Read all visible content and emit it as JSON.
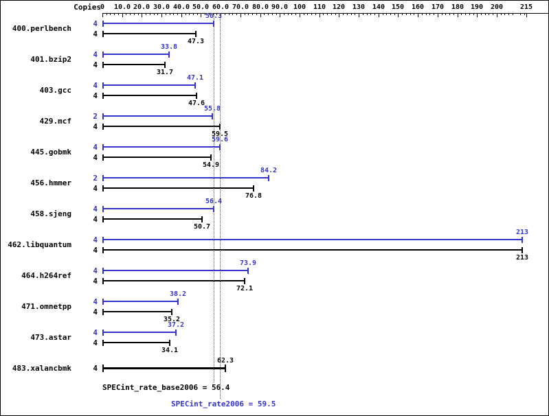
{
  "header": {
    "copies_label": "Copies"
  },
  "axis": {
    "min": 0,
    "max": 215,
    "major_tick_interval": 10,
    "minor_tick_interval": 2,
    "tick_values": [
      0,
      10,
      20,
      30,
      40,
      50,
      60,
      70,
      80,
      90,
      100,
      110,
      120,
      130,
      140,
      150,
      160,
      170,
      180,
      190,
      200,
      215
    ],
    "tick_labels": [
      "0",
      "10.0",
      "20.0",
      "30.0",
      "40.0",
      "50.0",
      "60.0",
      "70.0",
      "80.0",
      "90.0",
      "100",
      "110",
      "120",
      "130",
      "140",
      "150",
      "160",
      "170",
      "180",
      "190",
      "200",
      "215"
    ]
  },
  "chart_data": {
    "type": "bar",
    "orientation": "horizontal",
    "xlim": [
      0,
      215
    ],
    "series_colors": {
      "peak": "#3333cc",
      "base": "#000000"
    },
    "benchmarks": [
      {
        "name": "400.perlbench",
        "bars": [
          {
            "series": "peak",
            "copies": "4",
            "value": 56.3,
            "label": "56.3"
          },
          {
            "series": "base",
            "copies": "4",
            "value": 47.3,
            "label": "47.3"
          }
        ]
      },
      {
        "name": "401.bzip2",
        "bars": [
          {
            "series": "peak",
            "copies": "4",
            "value": 33.8,
            "label": "33.8"
          },
          {
            "series": "base",
            "copies": "4",
            "value": 31.7,
            "label": "31.7"
          }
        ]
      },
      {
        "name": "403.gcc",
        "bars": [
          {
            "series": "peak",
            "copies": "4",
            "value": 47.1,
            "label": "47.1"
          },
          {
            "series": "base",
            "copies": "4",
            "value": 47.6,
            "label": "47.6"
          }
        ]
      },
      {
        "name": "429.mcf",
        "bars": [
          {
            "series": "peak",
            "copies": "2",
            "value": 55.8,
            "label": "55.8"
          },
          {
            "series": "base",
            "copies": "4",
            "value": 59.5,
            "label": "59.5"
          }
        ]
      },
      {
        "name": "445.gobmk",
        "bars": [
          {
            "series": "peak",
            "copies": "4",
            "value": 59.6,
            "label": "59.6"
          },
          {
            "series": "base",
            "copies": "4",
            "value": 54.9,
            "label": "54.9"
          }
        ]
      },
      {
        "name": "456.hmmer",
        "bars": [
          {
            "series": "peak",
            "copies": "2",
            "value": 84.2,
            "label": "84.2"
          },
          {
            "series": "base",
            "copies": "4",
            "value": 76.8,
            "label": "76.8"
          }
        ]
      },
      {
        "name": "458.sjeng",
        "bars": [
          {
            "series": "peak",
            "copies": "4",
            "value": 56.4,
            "label": "56.4"
          },
          {
            "series": "base",
            "copies": "4",
            "value": 50.7,
            "label": "50.7"
          }
        ]
      },
      {
        "name": "462.libquantum",
        "bars": [
          {
            "series": "peak",
            "copies": "4",
            "value": 213,
            "label": "213"
          },
          {
            "series": "base",
            "copies": "4",
            "value": 213,
            "label": "213"
          }
        ]
      },
      {
        "name": "464.h264ref",
        "bars": [
          {
            "series": "peak",
            "copies": "4",
            "value": 73.9,
            "label": "73.9"
          },
          {
            "series": "base",
            "copies": "4",
            "value": 72.1,
            "label": "72.1"
          }
        ]
      },
      {
        "name": "471.omnetpp",
        "bars": [
          {
            "series": "peak",
            "copies": "4",
            "value": 38.2,
            "label": "38.2"
          },
          {
            "series": "base",
            "copies": "4",
            "value": 35.2,
            "label": "35.2"
          }
        ]
      },
      {
        "name": "473.astar",
        "bars": [
          {
            "series": "peak",
            "copies": "4",
            "value": 37.2,
            "label": "37.2"
          },
          {
            "series": "base",
            "copies": "4",
            "value": 34.1,
            "label": "34.1"
          }
        ]
      },
      {
        "name": "483.xalancbmk",
        "bars": [
          {
            "series": "base",
            "copies": "4",
            "value": 62.3,
            "label": "62.3",
            "label_pos": "above",
            "thick": true
          }
        ]
      }
    ],
    "reference_lines": [
      {
        "label": "SPECint_rate_base2006 = 56.4",
        "value": 56.4,
        "color": "#000000"
      },
      {
        "label": "SPECint_rate2006 = 59.5",
        "value": 59.5,
        "color": "#3333cc"
      }
    ]
  }
}
